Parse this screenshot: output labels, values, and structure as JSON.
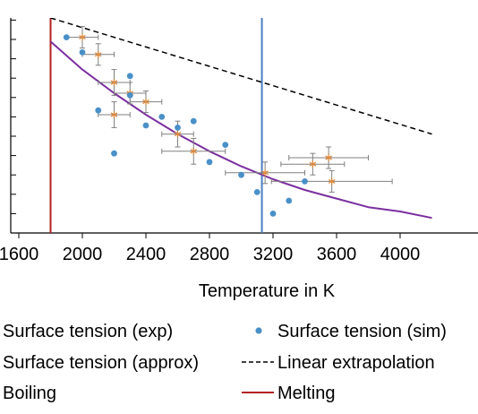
{
  "chart_data": {
    "type": "scatter",
    "xlabel": "Temperature in K",
    "ylabel": "",
    "xlim": [
      1600,
      4200
    ],
    "ylim": [
      0.0,
      1.0
    ],
    "xticks": [
      1600,
      2000,
      2400,
      2800,
      3200,
      3600,
      4000
    ],
    "xtick_labels": [
      "1600",
      "2000",
      "2400",
      "2800",
      "3200",
      "3600",
      "4000"
    ],
    "yticks": [
      0.0,
      0.09,
      0.18,
      0.27,
      0.36,
      0.45,
      0.54,
      0.63,
      0.72,
      0.81,
      0.9,
      0.99
    ],
    "grid": false,
    "legend_position": "bottom",
    "vertical_lines": {
      "melting": 1800,
      "boiling": 3130
    },
    "series": [
      {
        "name": "Surface tension (exp)",
        "kind": "errorbar",
        "color": "#E08A3C",
        "errcolor": "#808080",
        "points": [
          {
            "x": 2000,
            "y": 0.91,
            "xerr": 100,
            "yerr": 0.05
          },
          {
            "x": 2100,
            "y": 0.83,
            "xerr": 100,
            "yerr": 0.05
          },
          {
            "x": 2200,
            "y": 0.7,
            "xerr": 100,
            "yerr": 0.06
          },
          {
            "x": 2200,
            "y": 0.55,
            "xerr": 100,
            "yerr": 0.06
          },
          {
            "x": 2300,
            "y": 0.65,
            "xerr": 100,
            "yerr": 0.05
          },
          {
            "x": 2400,
            "y": 0.61,
            "xerr": 100,
            "yerr": 0.05
          },
          {
            "x": 2600,
            "y": 0.46,
            "xerr": 100,
            "yerr": 0.06
          },
          {
            "x": 2700,
            "y": 0.38,
            "xerr": 200,
            "yerr": 0.06
          },
          {
            "x": 3150,
            "y": 0.28,
            "xerr": 250,
            "yerr": 0.05
          },
          {
            "x": 3450,
            "y": 0.32,
            "xerr": 200,
            "yerr": 0.05
          },
          {
            "x": 3550,
            "y": 0.35,
            "xerr": 250,
            "yerr": 0.05
          },
          {
            "x": 3570,
            "y": 0.24,
            "xerr": 380,
            "yerr": 0.05
          }
        ]
      },
      {
        "name": "Surface tension (sim)",
        "kind": "scatter",
        "color": "#4A90C8",
        "points": [
          {
            "x": 1900,
            "y": 0.91
          },
          {
            "x": 2000,
            "y": 0.84
          },
          {
            "x": 2100,
            "y": 0.57
          },
          {
            "x": 2200,
            "y": 0.37
          },
          {
            "x": 2300,
            "y": 0.73
          },
          {
            "x": 2300,
            "y": 0.64
          },
          {
            "x": 2400,
            "y": 0.5
          },
          {
            "x": 2500,
            "y": 0.54
          },
          {
            "x": 2600,
            "y": 0.49
          },
          {
            "x": 2700,
            "y": 0.52
          },
          {
            "x": 2800,
            "y": 0.33
          },
          {
            "x": 2900,
            "y": 0.41
          },
          {
            "x": 3000,
            "y": 0.27
          },
          {
            "x": 3100,
            "y": 0.19
          },
          {
            "x": 3200,
            "y": 0.09
          },
          {
            "x": 3300,
            "y": 0.15
          },
          {
            "x": 3400,
            "y": 0.24
          }
        ]
      },
      {
        "name": "Surface tension (approx)",
        "kind": "line",
        "color": "#7B2FA0",
        "points": [
          {
            "x": 1800,
            "y": 0.89
          },
          {
            "x": 2000,
            "y": 0.76
          },
          {
            "x": 2200,
            "y": 0.65
          },
          {
            "x": 2400,
            "y": 0.55
          },
          {
            "x": 2600,
            "y": 0.46
          },
          {
            "x": 2800,
            "y": 0.38
          },
          {
            "x": 3000,
            "y": 0.31
          },
          {
            "x": 3200,
            "y": 0.25
          },
          {
            "x": 3400,
            "y": 0.2
          },
          {
            "x": 3600,
            "y": 0.16
          },
          {
            "x": 3800,
            "y": 0.12
          },
          {
            "x": 4000,
            "y": 0.1
          },
          {
            "x": 4200,
            "y": 0.07
          }
        ]
      },
      {
        "name": "Linear extrapolation",
        "kind": "line",
        "style": "dashed",
        "color": "#000000",
        "points": [
          {
            "x": 1800,
            "y": 1.0
          },
          {
            "x": 4200,
            "y": 0.46
          }
        ]
      },
      {
        "name": "Boiling",
        "kind": "vline",
        "color": "#4A7FC0",
        "points": [
          {
            "x": 3130
          }
        ]
      },
      {
        "name": "Melting",
        "kind": "vline",
        "color": "#B22222",
        "points": [
          {
            "x": 1800
          }
        ]
      }
    ]
  },
  "legend": {
    "surface_exp": "Surface tension (exp)",
    "surface_sim": "Surface tension (sim)",
    "surface_approx": "Surface tension (approx)",
    "linear_extrap": "Linear extrapolation",
    "boiling": "Boiling",
    "melting": "Melting"
  }
}
